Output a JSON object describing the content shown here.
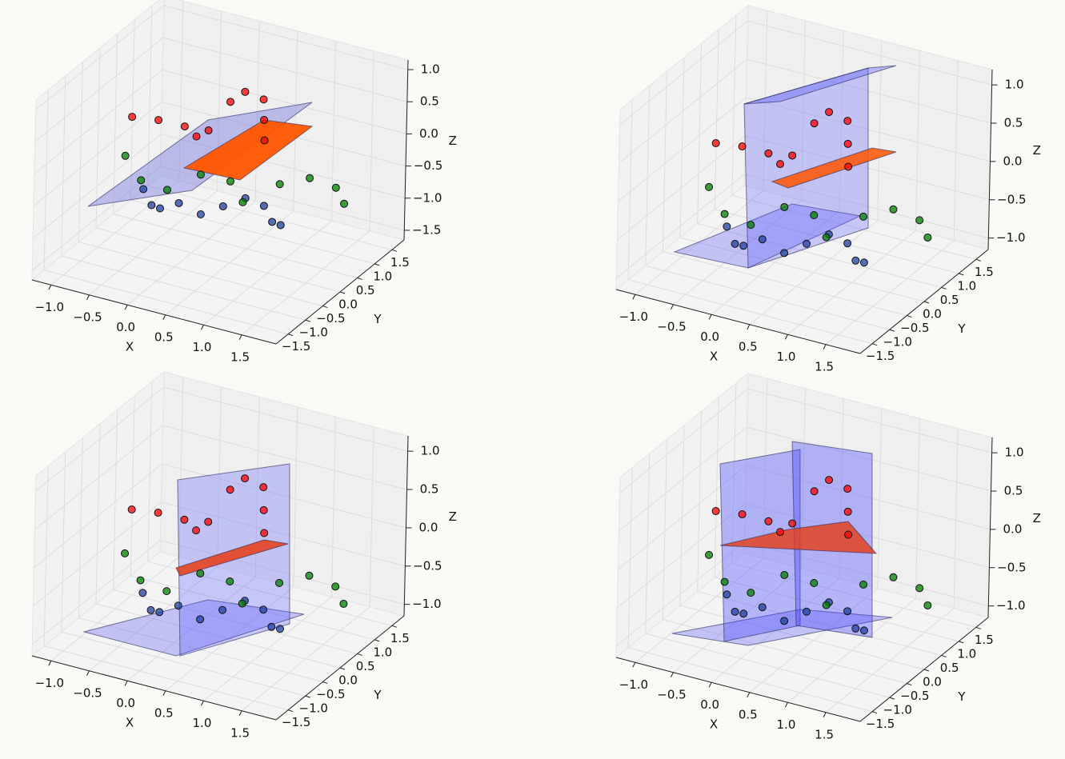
{
  "chart_data": [
    {
      "type": "scatter3d",
      "xlabel": "X",
      "ylabel": "Y",
      "zlabel": "Z",
      "grid": true,
      "xlim": [
        -1.25,
        1.95
      ],
      "ylim": [
        -1.85,
        1.85
      ],
      "zlim": [
        -1.65,
        1.15
      ],
      "xticks": [
        {
          "value": -1,
          "label": "−1.0"
        },
        {
          "value": -0.5,
          "label": "−0.5"
        },
        {
          "value": 0,
          "label": "0.0"
        },
        0.5,
        {
          "value": 1,
          "label": "1.0"
        },
        1.5
      ],
      "yticks": [
        {
          "value": -1.5,
          "label": "−1.5"
        },
        {
          "value": -1,
          "label": "−1.0"
        },
        {
          "value": -0.5,
          "label": "−0.5"
        },
        {
          "value": 0,
          "label": "0.0"
        },
        0.5,
        {
          "value": 1,
          "label": "1.0"
        },
        1.5
      ],
      "zticks": [
        {
          "value": -1.5,
          "label": "−1.5"
        },
        {
          "value": -1,
          "label": "−1.0"
        },
        {
          "value": -0.5,
          "label": "−0.5"
        },
        {
          "value": 0,
          "label": "0.0"
        },
        0.5,
        {
          "value": 1,
          "label": "1.0"
        }
      ],
      "series": [
        {
          "color": "#2040a0",
          "x": [
            -0.6,
            -0.4,
            -0.2,
            0.0,
            0.2,
            0.4,
            0.6,
            0.8,
            1.0,
            1.2
          ],
          "y": [
            -0.1,
            -0.3,
            -0.5,
            -0.4,
            -0.2,
            0.0,
            0.2,
            0.3,
            0.1,
            -0.1
          ],
          "z": [
            -0.8,
            -0.9,
            -0.8,
            -0.7,
            -0.9,
            -0.8,
            -0.7,
            -0.8,
            -0.9,
            -0.8
          ]
        },
        {
          "color": "#008000",
          "x": [
            -0.8,
            -0.5,
            -0.2,
            0.1,
            0.4,
            0.7,
            1.0,
            1.3,
            1.6,
            1.8
          ],
          "y": [
            -0.2,
            -0.4,
            -0.3,
            0.0,
            0.2,
            -0.1,
            0.3,
            0.5,
            0.6,
            0.4
          ],
          "z": [
            -0.3,
            -0.5,
            -0.6,
            -0.4,
            -0.5,
            -0.6,
            -0.4,
            -0.3,
            -0.4,
            -0.5
          ]
        },
        {
          "color": "#ff0000",
          "x": [
            -0.9,
            -0.6,
            -0.3,
            -0.1,
            0.1,
            0.2,
            0.3,
            0.5,
            0.6,
            0.7
          ],
          "y": [
            0.2,
            0.3,
            0.4,
            0.3,
            0.2,
            0.6,
            0.8,
            0.9,
            0.7,
            0.5
          ],
          "z": [
            0.1,
            0.1,
            0.05,
            0.0,
            0.2,
            0.5,
            0.6,
            0.5,
            0.3,
            0.1
          ]
        }
      ]
    },
    {
      "type": "scatter3d",
      "xlabel": "X",
      "ylabel": "Y",
      "zlabel": "Z",
      "grid": true,
      "xlim": [
        -1.25,
        1.95
      ],
      "ylim": [
        -1.85,
        1.85
      ],
      "zlim": [
        -1.15,
        1.2
      ],
      "xticks": [
        {
          "value": -1,
          "label": "−1.0"
        },
        {
          "value": -0.5,
          "label": "−0.5"
        },
        {
          "value": 0,
          "label": "0.0"
        },
        0.5,
        {
          "value": 1,
          "label": "1.0"
        },
        1.5
      ],
      "yticks": [
        {
          "value": -1.5,
          "label": "−1.5"
        },
        {
          "value": -1,
          "label": "−1.0"
        },
        {
          "value": -0.5,
          "label": "−0.5"
        },
        {
          "value": 0,
          "label": "0.0"
        },
        0.5,
        {
          "value": 1,
          "label": "1.0"
        },
        1.5
      ],
      "zticks": [
        {
          "value": -1,
          "label": "−1.0"
        },
        {
          "value": -0.5,
          "label": "−0.5"
        },
        {
          "value": 0,
          "label": "0.0"
        },
        0.5,
        {
          "value": 1,
          "label": "1.0"
        }
      ],
      "series": [
        {
          "color": "#2040a0",
          "x": [
            -0.6,
            -0.4,
            -0.2,
            0.0,
            0.2,
            0.4,
            0.6,
            0.8,
            1.0,
            1.2
          ],
          "y": [
            -0.1,
            -0.3,
            -0.5,
            -0.4,
            -0.2,
            0.0,
            0.2,
            0.3,
            0.1,
            -0.1
          ],
          "z": [
            -0.8,
            -0.9,
            -0.8,
            -0.7,
            -0.9,
            -0.8,
            -0.7,
            -0.8,
            -0.9,
            -0.8
          ]
        },
        {
          "color": "#008000",
          "x": [
            -0.8,
            -0.5,
            -0.2,
            0.1,
            0.4,
            0.7,
            1.0,
            1.3,
            1.6,
            1.8
          ],
          "y": [
            -0.2,
            -0.4,
            -0.3,
            0.0,
            0.2,
            -0.1,
            0.3,
            0.5,
            0.6,
            0.4
          ],
          "z": [
            -0.3,
            -0.5,
            -0.6,
            -0.4,
            -0.5,
            -0.6,
            -0.4,
            -0.3,
            -0.4,
            -0.5
          ]
        },
        {
          "color": "#ff0000",
          "x": [
            -0.9,
            -0.6,
            -0.3,
            -0.1,
            0.1,
            0.2,
            0.3,
            0.5,
            0.6,
            0.7
          ],
          "y": [
            0.2,
            0.3,
            0.4,
            0.3,
            0.2,
            0.6,
            0.8,
            0.9,
            0.7,
            0.5
          ],
          "z": [
            0.1,
            0.1,
            0.05,
            0.0,
            0.2,
            0.5,
            0.6,
            0.5,
            0.3,
            0.1
          ]
        }
      ]
    },
    {
      "type": "scatter3d",
      "xlabel": "X",
      "ylabel": "Y",
      "zlabel": "Z",
      "grid": true,
      "xlim": [
        -1.25,
        1.95
      ],
      "ylim": [
        -1.85,
        1.85
      ],
      "zlim": [
        -1.15,
        1.2
      ],
      "xticks": [
        {
          "value": -1,
          "label": "−1.0"
        },
        {
          "value": -0.5,
          "label": "−0.5"
        },
        {
          "value": 0,
          "label": "0.0"
        },
        0.5,
        {
          "value": 1,
          "label": "1.0"
        },
        1.5
      ],
      "yticks": [
        {
          "value": -1.5,
          "label": "−1.5"
        },
        {
          "value": -1,
          "label": "−1.0"
        },
        {
          "value": -0.5,
          "label": "−0.5"
        },
        {
          "value": 0,
          "label": "0.0"
        },
        0.5,
        {
          "value": 1,
          "label": "1.0"
        },
        1.5
      ],
      "zticks": [
        {
          "value": -1,
          "label": "−1.0"
        },
        {
          "value": -0.5,
          "label": "−0.5"
        },
        {
          "value": 0,
          "label": "0.0"
        },
        0.5,
        {
          "value": 1,
          "label": "1.0"
        }
      ],
      "series": [
        {
          "color": "#2040a0",
          "x": [
            -0.6,
            -0.4,
            -0.2,
            0.0,
            0.2,
            0.4,
            0.6,
            0.8,
            1.0,
            1.2
          ],
          "y": [
            -0.1,
            -0.3,
            -0.5,
            -0.4,
            -0.2,
            0.0,
            0.2,
            0.3,
            0.1,
            -0.1
          ],
          "z": [
            -0.8,
            -0.9,
            -0.8,
            -0.7,
            -0.9,
            -0.8,
            -0.7,
            -0.8,
            -0.9,
            -0.8
          ]
        },
        {
          "color": "#008000",
          "x": [
            -0.8,
            -0.5,
            -0.2,
            0.1,
            0.4,
            0.7,
            1.0,
            1.3,
            1.6,
            1.8
          ],
          "y": [
            -0.2,
            -0.4,
            -0.3,
            0.0,
            0.2,
            -0.1,
            0.3,
            0.5,
            0.6,
            0.4
          ],
          "z": [
            -0.3,
            -0.5,
            -0.6,
            -0.4,
            -0.5,
            -0.6,
            -0.4,
            -0.3,
            -0.4,
            -0.5
          ]
        },
        {
          "color": "#ff0000",
          "x": [
            -0.9,
            -0.6,
            -0.3,
            -0.1,
            0.1,
            0.2,
            0.3,
            0.5,
            0.6,
            0.7
          ],
          "y": [
            0.2,
            0.3,
            0.4,
            0.3,
            0.2,
            0.6,
            0.8,
            0.9,
            0.7,
            0.5
          ],
          "z": [
            0.1,
            0.1,
            0.05,
            0.0,
            0.2,
            0.5,
            0.6,
            0.5,
            0.3,
            0.1
          ]
        }
      ]
    },
    {
      "type": "scatter3d",
      "xlabel": "X",
      "ylabel": "Y",
      "zlabel": "Z",
      "grid": true,
      "xlim": [
        -1.25,
        1.95
      ],
      "ylim": [
        -1.85,
        1.85
      ],
      "zlim": [
        -1.15,
        1.2
      ],
      "xticks": [
        {
          "value": -1,
          "label": "−1.0"
        },
        {
          "value": -0.5,
          "label": "−0.5"
        },
        {
          "value": 0,
          "label": "0.0"
        },
        0.5,
        {
          "value": 1,
          "label": "1.0"
        },
        1.5
      ],
      "yticks": [
        {
          "value": -1.5,
          "label": "−1.5"
        },
        {
          "value": -1,
          "label": "−1.0"
        },
        {
          "value": -0.5,
          "label": "−0.5"
        },
        {
          "value": 0,
          "label": "0.0"
        },
        0.5,
        {
          "value": 1,
          "label": "1.0"
        },
        1.5
      ],
      "zticks": [
        {
          "value": -1,
          "label": "−1.0"
        },
        {
          "value": -0.5,
          "label": "−0.5"
        },
        {
          "value": 0,
          "label": "0.0"
        },
        0.5,
        {
          "value": 1,
          "label": "1.0"
        }
      ],
      "series": [
        {
          "color": "#2040a0",
          "x": [
            -0.6,
            -0.4,
            -0.2,
            0.0,
            0.2,
            0.4,
            0.6,
            0.8,
            1.0,
            1.2
          ],
          "y": [
            -0.1,
            -0.3,
            -0.5,
            -0.4,
            -0.2,
            0.0,
            0.2,
            0.3,
            0.1,
            -0.1
          ],
          "z": [
            -0.8,
            -0.9,
            -0.8,
            -0.7,
            -0.9,
            -0.8,
            -0.7,
            -0.8,
            -0.9,
            -0.8
          ]
        },
        {
          "color": "#008000",
          "x": [
            -0.8,
            -0.5,
            -0.2,
            0.1,
            0.4,
            0.7,
            1.0,
            1.3,
            1.6,
            1.8
          ],
          "y": [
            -0.2,
            -0.4,
            -0.3,
            0.0,
            0.2,
            -0.1,
            0.3,
            0.5,
            0.6,
            0.4
          ],
          "z": [
            -0.3,
            -0.5,
            -0.6,
            -0.4,
            -0.5,
            -0.6,
            -0.4,
            -0.3,
            -0.4,
            -0.5
          ]
        },
        {
          "color": "#ff0000",
          "x": [
            -0.9,
            -0.6,
            -0.3,
            -0.1,
            0.1,
            0.2,
            0.3,
            0.5,
            0.6,
            0.7
          ],
          "y": [
            0.2,
            0.3,
            0.4,
            0.3,
            0.2,
            0.6,
            0.8,
            0.9,
            0.7,
            0.5
          ],
          "z": [
            0.1,
            0.1,
            0.05,
            0.0,
            0.2,
            0.5,
            0.6,
            0.5,
            0.3,
            0.1
          ]
        }
      ]
    }
  ]
}
